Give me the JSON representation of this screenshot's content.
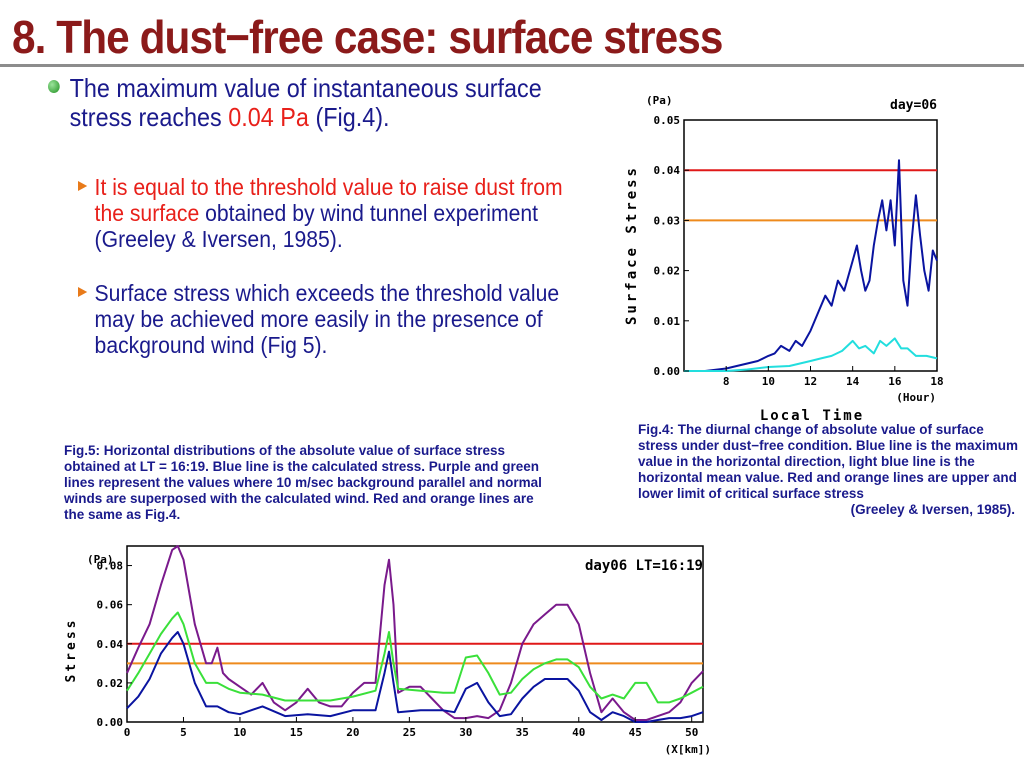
{
  "slide": {
    "title": "8. The dust−free case: surface stress",
    "bullet_main": {
      "text_before": "The maximum value of instantaneous surface stress reaches ",
      "highlight": "0.04 Pa",
      "text_after": " (Fig.4)."
    },
    "sub_bullets": [
      {
        "highlight": "It is equal to the threshold value to raise dust from the surface",
        "text": " obtained by wind tunnel experiment (Greeley & Iversen, 1985)."
      },
      {
        "text": "Surface stress which exceeds the threshold value may be achieved more easily in the presence of background wind (Fig 5)."
      }
    ]
  },
  "fig4_caption": {
    "text": "Fig.4: The diurnal change of absolute value of surface stress under dust−free condition. Blue line is the maximum value in the horizontal direction, light blue line is the horizontal mean value. Red and orange lines are upper and lower limit of critical surface stress",
    "citation": "(Greeley & Iversen, 1985)."
  },
  "fig5_caption": {
    "text": "Fig.5: Horizontal distributions of the absolute value of surface stress obtained at LT = 16:19. Blue line is the calculated stress. Purple and green lines represent the values where 10 m/sec background parallel and normal winds are superposed with the calculated wind. Red and orange lines are the same as Fig.4."
  },
  "colors": {
    "title": "#8b1a1a",
    "text": "#1a1a8c",
    "highlight": "#e8201a",
    "max_line": "#0a14a0",
    "mean_line": "#22dede",
    "upper_threshold": "#e01818",
    "lower_threshold": "#ee8a1c",
    "parallel_wind": "#7a1a8c",
    "normal_wind": "#3ae03a"
  },
  "chart_data": [
    {
      "type": "line",
      "title": "day=06",
      "xlabel": "Local Time",
      "xunit": "(Hour)",
      "ylabel": "Surface Stress",
      "yunit": "(Pa)",
      "xlim": [
        6,
        18
      ],
      "ylim": [
        0,
        0.05
      ],
      "x_ticks": [
        8,
        10,
        12,
        14,
        16,
        18
      ],
      "y_ticks": [
        "0.00",
        "0.01",
        "0.02",
        "0.03",
        "0.04",
        "0.05"
      ],
      "hlines": [
        {
          "name": "upper limit",
          "value": 0.04,
          "color": "#e01818"
        },
        {
          "name": "lower limit",
          "value": 0.03,
          "color": "#ee8a1c"
        }
      ],
      "series": [
        {
          "name": "maximum",
          "color": "#0a14a0",
          "x": [
            6,
            7,
            8,
            8.5,
            9,
            9.5,
            10,
            10.3,
            10.6,
            11,
            11.3,
            11.6,
            12,
            12.2,
            12.4,
            12.7,
            13,
            13.3,
            13.6,
            14,
            14.2,
            14.4,
            14.6,
            14.8,
            15,
            15.2,
            15.4,
            15.6,
            15.8,
            16,
            16.2,
            16.4,
            16.6,
            16.8,
            17,
            17.2,
            17.4,
            17.6,
            17.8,
            18
          ],
          "values": [
            0,
            0,
            0.0005,
            0.001,
            0.0015,
            0.002,
            0.003,
            0.0035,
            0.005,
            0.004,
            0.006,
            0.005,
            0.008,
            0.01,
            0.012,
            0.015,
            0.013,
            0.018,
            0.016,
            0.022,
            0.025,
            0.02,
            0.016,
            0.018,
            0.025,
            0.03,
            0.034,
            0.028,
            0.034,
            0.025,
            0.042,
            0.018,
            0.013,
            0.026,
            0.035,
            0.027,
            0.02,
            0.016,
            0.024,
            0.022
          ]
        },
        {
          "name": "mean",
          "color": "#22dede",
          "x": [
            6,
            8,
            9,
            10,
            11,
            12,
            12.5,
            13,
            13.5,
            14,
            14.3,
            14.6,
            15,
            15.3,
            15.6,
            16,
            16.3,
            16.6,
            17,
            17.5,
            18
          ],
          "values": [
            0,
            0,
            0.0003,
            0.0008,
            0.001,
            0.002,
            0.0025,
            0.003,
            0.004,
            0.006,
            0.0045,
            0.005,
            0.0035,
            0.006,
            0.005,
            0.0065,
            0.0045,
            0.0045,
            0.003,
            0.003,
            0.0025
          ]
        }
      ]
    },
    {
      "type": "line",
      "title": "day06  LT=16:19",
      "xlabel": "(X[km])",
      "ylabel": "Stress",
      "yunit": "(Pa)",
      "xlim": [
        0,
        51
      ],
      "ylim": [
        0,
        0.09
      ],
      "x_ticks": [
        0,
        5,
        10,
        15,
        20,
        25,
        30,
        35,
        40,
        45,
        50
      ],
      "y_ticks": [
        "0.00",
        "0.02",
        "0.04",
        "0.06",
        "0.08"
      ],
      "hlines": [
        {
          "name": "upper limit",
          "value": 0.04,
          "color": "#e01818"
        },
        {
          "name": "lower limit",
          "value": 0.03,
          "color": "#ee8a1c"
        }
      ],
      "series": [
        {
          "name": "parallel wind",
          "color": "#7a1a8c",
          "x": [
            0,
            1,
            2,
            3,
            4,
            4.5,
            5,
            6,
            7,
            7.5,
            8,
            8.5,
            9,
            10,
            11,
            12,
            13,
            14,
            15,
            16,
            17,
            18,
            19,
            20,
            21,
            22,
            22.8,
            23.2,
            23.6,
            24,
            25,
            26,
            27,
            28,
            29,
            30,
            31,
            32,
            33,
            34,
            35,
            36,
            37,
            38,
            39,
            40,
            41,
            42,
            43,
            44,
            45,
            46,
            47,
            48,
            49,
            50,
            51
          ],
          "values": [
            0.025,
            0.038,
            0.05,
            0.07,
            0.088,
            0.09,
            0.083,
            0.05,
            0.03,
            0.03,
            0.038,
            0.025,
            0.022,
            0.018,
            0.014,
            0.02,
            0.01,
            0.006,
            0.01,
            0.017,
            0.01,
            0.008,
            0.008,
            0.015,
            0.02,
            0.02,
            0.07,
            0.083,
            0.06,
            0.015,
            0.018,
            0.018,
            0.012,
            0.006,
            0.002,
            0.002,
            0.003,
            0.002,
            0.006,
            0.02,
            0.04,
            0.05,
            0.055,
            0.06,
            0.06,
            0.05,
            0.025,
            0.005,
            0.012,
            0.005,
            0.001,
            0.001,
            0.003,
            0.005,
            0.01,
            0.02,
            0.026
          ]
        },
        {
          "name": "normal wind",
          "color": "#3ae03a",
          "x": [
            0,
            1,
            2,
            3,
            4,
            4.5,
            5,
            6,
            7,
            8,
            9,
            10,
            12,
            14,
            16,
            18,
            20,
            22,
            22.8,
            23.2,
            23.6,
            24,
            26,
            28,
            29,
            30,
            31,
            32,
            33,
            34,
            35,
            36,
            37,
            38,
            39,
            40,
            41,
            42,
            43,
            44,
            45,
            46,
            47,
            48,
            49,
            50,
            51
          ],
          "values": [
            0.016,
            0.025,
            0.035,
            0.045,
            0.053,
            0.056,
            0.05,
            0.03,
            0.02,
            0.02,
            0.017,
            0.015,
            0.014,
            0.011,
            0.011,
            0.011,
            0.013,
            0.016,
            0.035,
            0.046,
            0.03,
            0.017,
            0.016,
            0.015,
            0.015,
            0.033,
            0.034,
            0.025,
            0.014,
            0.015,
            0.022,
            0.027,
            0.03,
            0.032,
            0.032,
            0.028,
            0.018,
            0.012,
            0.014,
            0.012,
            0.02,
            0.02,
            0.01,
            0.01,
            0.012,
            0.015,
            0.018
          ]
        },
        {
          "name": "calculated",
          "color": "#0a14a0",
          "x": [
            0,
            1,
            2,
            3,
            4,
            4.5,
            5,
            6,
            7,
            8,
            9,
            10,
            12,
            14,
            16,
            18,
            20,
            22,
            22.8,
            23.2,
            23.6,
            24,
            26,
            28,
            29,
            30,
            31,
            32,
            33,
            34,
            35,
            36,
            37,
            38,
            39,
            40,
            41,
            42,
            43,
            44,
            45,
            46,
            47,
            48,
            49,
            50,
            51
          ],
          "values": [
            0.007,
            0.013,
            0.022,
            0.035,
            0.043,
            0.046,
            0.04,
            0.02,
            0.008,
            0.008,
            0.005,
            0.004,
            0.008,
            0.003,
            0.004,
            0.003,
            0.006,
            0.006,
            0.025,
            0.036,
            0.02,
            0.005,
            0.006,
            0.006,
            0.005,
            0.017,
            0.02,
            0.01,
            0.003,
            0.004,
            0.012,
            0.018,
            0.022,
            0.022,
            0.022,
            0.016,
            0.005,
            0.001,
            0.005,
            0.003,
            0.0,
            0.0,
            0.001,
            0.002,
            0.002,
            0.003,
            0.005
          ]
        }
      ]
    }
  ]
}
